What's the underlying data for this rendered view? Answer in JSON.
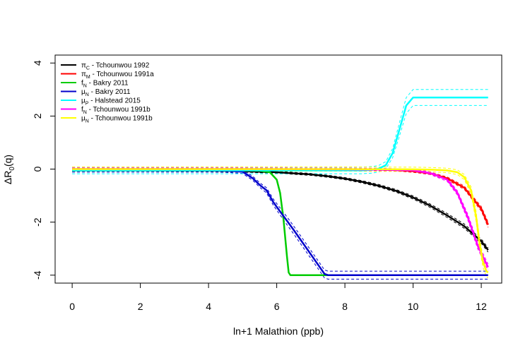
{
  "chart_data": {
    "type": "line",
    "title": "",
    "xlabel": "ln+1 Malathion (ppb)",
    "ylabel_main": "ΔR",
    "ylabel_sub": "0",
    "ylabel_tail": "(q)",
    "xlim": [
      -0.5,
      12.6
    ],
    "ylim": [
      -4.3,
      4.3
    ],
    "xticks": [
      "0",
      "2",
      "4",
      "6",
      "8",
      "10",
      "12"
    ],
    "xtick_values": [
      0,
      2,
      4,
      6,
      8,
      10,
      12
    ],
    "yticks": [
      "-4",
      "-2",
      "0",
      "2",
      "4"
    ],
    "ytick_values": [
      -4,
      -2,
      0,
      2,
      4
    ],
    "grid": false,
    "legend_position": "top-left",
    "series": [
      {
        "sym": "π",
        "sub": "C",
        "name_rest": " - Tchounwou 1992",
        "color": "#000000",
        "x": [
          0,
          2,
          4,
          5,
          6,
          7,
          7.5,
          8,
          8.5,
          9,
          9.5,
          10,
          10.5,
          11,
          11.5,
          12,
          12.2
        ],
        "y": [
          -0.05,
          -0.05,
          -0.06,
          -0.08,
          -0.12,
          -0.2,
          -0.27,
          -0.36,
          -0.48,
          -0.63,
          -0.82,
          -1.07,
          -1.38,
          -1.75,
          -2.15,
          -2.72,
          -3.05
        ],
        "band": 0.08
      },
      {
        "sym": "π",
        "sub": "M",
        "name_rest": " - Tchounwou 1991a",
        "color": "#ff0000",
        "x": [
          0,
          4,
          8,
          9,
          9.5,
          10,
          10.5,
          11,
          11.5,
          12,
          12.2
        ],
        "y": [
          0,
          0,
          -0.01,
          -0.02,
          -0.04,
          -0.08,
          -0.16,
          -0.35,
          -0.7,
          -1.5,
          -2.1
        ],
        "band": 0.1
      },
      {
        "sym": "f",
        "sub": "N",
        "name_rest": " - Bakry 2011",
        "color": "#00cc00",
        "x": [
          0,
          4,
          5,
          5.5,
          5.8,
          6.0,
          6.1,
          6.2,
          6.3,
          6.35,
          6.4,
          7,
          8,
          9
        ],
        "y": [
          -0.05,
          -0.05,
          -0.05,
          -0.06,
          -0.12,
          -0.4,
          -0.9,
          -1.9,
          -3.3,
          -3.9,
          -4,
          -4,
          -4,
          -4
        ],
        "band": 0
      },
      {
        "sym": "μ",
        "sub": "N",
        "name_rest": " - Bakry 2011",
        "color": "#0000cc",
        "x": [
          0,
          4,
          4.5,
          5,
          5.3,
          5.5,
          5.7,
          5.9,
          6.1,
          6.3,
          6.5,
          6.8,
          7.1,
          7.4,
          7.5,
          8,
          10,
          12.2
        ],
        "y": [
          -0.05,
          -0.05,
          -0.06,
          -0.1,
          -0.35,
          -0.6,
          -0.8,
          -1.25,
          -1.6,
          -1.95,
          -2.3,
          -2.85,
          -3.4,
          -3.95,
          -4,
          -4,
          -4,
          -4
        ],
        "band": 0.15
      },
      {
        "sym": "μ",
        "sub": "P",
        "name_rest": " - Halstead 2015",
        "color": "#00ffff",
        "x": [
          0,
          4,
          8,
          8.5,
          8.8,
          9.0,
          9.2,
          9.4,
          9.6,
          9.8,
          10,
          10.2,
          11,
          12.2
        ],
        "y": [
          -0.05,
          -0.05,
          -0.05,
          -0.05,
          -0.03,
          0.02,
          0.15,
          0.6,
          1.5,
          2.4,
          2.7,
          2.7,
          2.7,
          2.7
        ],
        "band": 0.3
      },
      {
        "sym": "f",
        "sub": "N",
        "name_rest": " - Tchounwou 1991b",
        "color": "#ff00ff",
        "x": [
          0,
          4,
          8,
          9,
          10,
          10.5,
          11,
          11.3,
          11.6,
          11.9,
          12.2
        ],
        "y": [
          0,
          0,
          -0.01,
          -0.02,
          -0.05,
          -0.15,
          -0.4,
          -0.9,
          -1.8,
          -2.9,
          -3.7
        ],
        "band": 0.12
      },
      {
        "sym": "μ",
        "sub": "N",
        "name_rest": " - Tchounwou 1991b",
        "color": "#ffff00",
        "x": [
          0,
          4,
          8,
          10,
          10.5,
          11,
          11.3,
          11.5,
          11.7,
          11.85,
          11.95,
          12.05,
          12.15,
          12.2
        ],
        "y": [
          0,
          0,
          0,
          -0.01,
          -0.02,
          -0.05,
          -0.12,
          -0.3,
          -0.8,
          -1.8,
          -2.8,
          -3.5,
          -3.85,
          -3.9
        ],
        "band": 0.2
      }
    ]
  }
}
